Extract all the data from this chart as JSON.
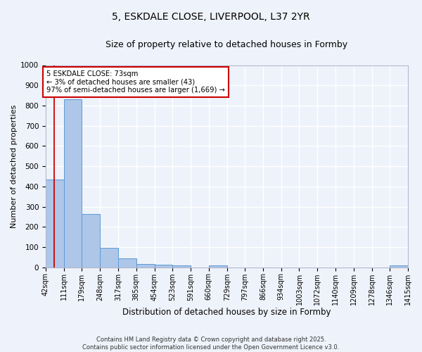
{
  "title": "5, ESKDALE CLOSE, LIVERPOOL, L37 2YR",
  "subtitle": "Size of property relative to detached houses in Formby",
  "xlabel": "Distribution of detached houses by size in Formby",
  "ylabel": "Number of detached properties",
  "bin_edges": [
    42,
    111,
    179,
    248,
    317,
    385,
    454,
    523,
    591,
    660,
    729,
    797,
    866,
    934,
    1003,
    1072,
    1140,
    1209,
    1278,
    1346,
    1415
  ],
  "bar_heights": [
    435,
    830,
    265,
    95,
    45,
    18,
    12,
    8,
    0,
    10,
    0,
    0,
    0,
    0,
    0,
    0,
    0,
    0,
    0,
    8
  ],
  "bar_color": "#aec6e8",
  "bar_edge_color": "#5b9bd5",
  "red_line_x": 73,
  "annotation_line1": "5 ESKDALE CLOSE: 73sqm",
  "annotation_line2": "← 3% of detached houses are smaller (43)",
  "annotation_line3": "97% of semi-detached houses are larger (1,669) →",
  "annotation_box_color": "#ffffff",
  "annotation_box_edge_color": "#cc0000",
  "ylim": [
    0,
    1000
  ],
  "yticks": [
    0,
    100,
    200,
    300,
    400,
    500,
    600,
    700,
    800,
    900,
    1000
  ],
  "background_color": "#eef2fa",
  "grid_color": "#ffffff",
  "footer_text": "Contains HM Land Registry data © Crown copyright and database right 2025.\nContains public sector information licensed under the Open Government Licence v3.0.",
  "title_fontsize": 10,
  "subtitle_fontsize": 9,
  "tick_label_fontsize": 7,
  "ylabel_fontsize": 8,
  "xlabel_fontsize": 8.5
}
